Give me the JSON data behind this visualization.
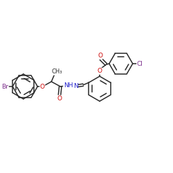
{
  "bg_color": "#ffffff",
  "bond_color": "#2a2a2a",
  "atom_colors": {
    "Br": "#7b2d8b",
    "O": "#cc0000",
    "N": "#2020cc",
    "Cl": "#7b2d8b",
    "C": "#2a2a2a",
    "H": "#2a2a2a"
  },
  "font_size": 6.5,
  "line_width": 1.1,
  "figsize": [
    2.5,
    2.5
  ],
  "dpi": 100
}
